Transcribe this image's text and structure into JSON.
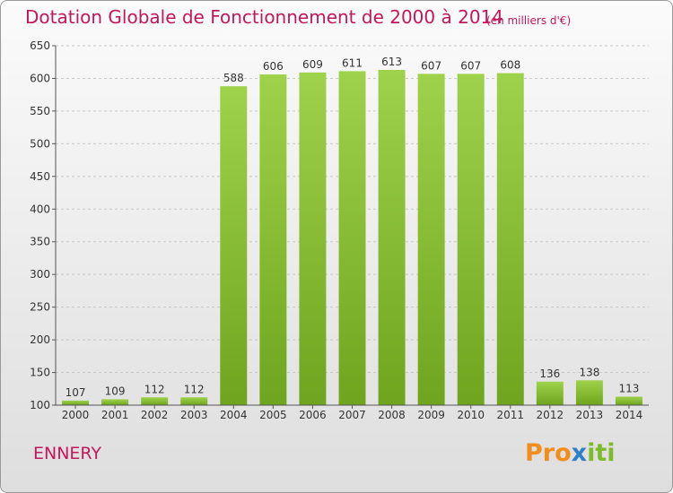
{
  "header": {
    "title": "Dotation Globale de Fonctionnement de 2000 à 2014",
    "unit": "(en milliers d'€)"
  },
  "footer": {
    "commune": "ENNERY",
    "brand_parts": [
      "Pro",
      "x",
      "iti"
    ]
  },
  "colors": {
    "title": "#c2185b",
    "bar_light": "#9ed24a",
    "bar_dark": "#6fa51e",
    "grid": "#c8c8c8",
    "axis": "#555555"
  },
  "chart_data": {
    "type": "bar",
    "title": "Dotation Globale de Fonctionnement de 2000 à 2014",
    "subtitle": "(en milliers d'€)",
    "xlabel": "",
    "ylabel": "",
    "categories": [
      "2000",
      "2001",
      "2002",
      "2003",
      "2004",
      "2005",
      "2006",
      "2007",
      "2008",
      "2009",
      "2010",
      "2011",
      "2012",
      "2013",
      "2014"
    ],
    "values": [
      107,
      109,
      112,
      112,
      588,
      606,
      609,
      611,
      613,
      607,
      607,
      608,
      136,
      138,
      113
    ],
    "ylim": [
      100,
      650
    ],
    "yticks": [
      100,
      150,
      200,
      250,
      300,
      350,
      400,
      450,
      500,
      550,
      600,
      650
    ],
    "grid": "horizontal dashed",
    "data_labels": true
  }
}
